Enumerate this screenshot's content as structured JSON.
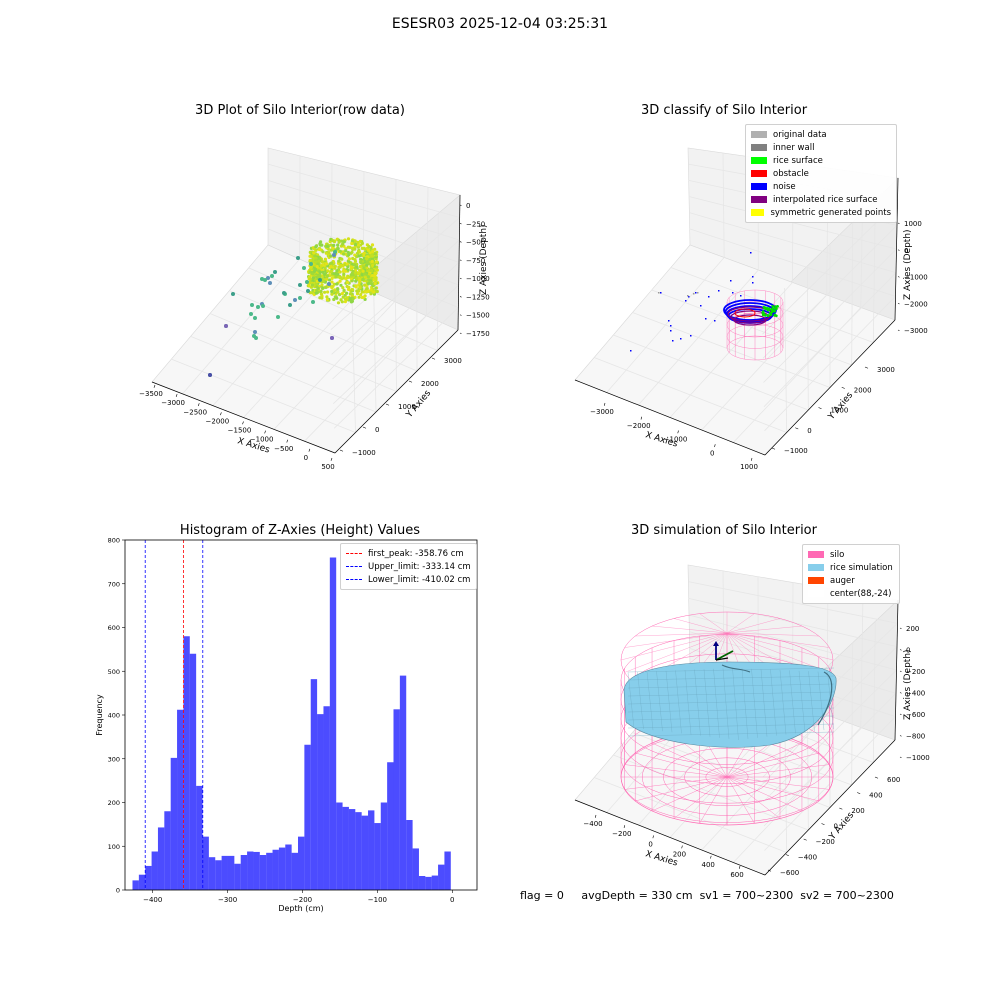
{
  "suptitle": "ESESR03 2025-12-04 03:25:31",
  "panels": {
    "raw": {
      "title": "3D Plot of Silo Interior(row data)",
      "x_label": "X Axies",
      "y_label": "Y Axies",
      "z_label": "Z Axies (Depth)",
      "x_ticks": [
        "−3500",
        "−3000",
        "−2500",
        "−2000",
        "−1500",
        "−1000",
        "−500",
        "0",
        "500"
      ],
      "y_ticks": [
        "−1000",
        "0",
        "1000",
        "2000",
        "3000"
      ],
      "z_ticks": [
        "0",
        "−250",
        "−500",
        "−750",
        "−1000",
        "−1250",
        "−1500",
        "−1750"
      ]
    },
    "classify": {
      "title": "3D classify of Silo Interior",
      "x_label": "X Axies",
      "y_label": "Y Axies",
      "z_label": "Z Axies (Depth)",
      "x_ticks": [
        "−3000",
        "−2000",
        "−1000",
        "0",
        "1000"
      ],
      "y_ticks": [
        "−1000",
        "0",
        "1000",
        "2000",
        "3000"
      ],
      "z_ticks": [
        "1000",
        "0",
        "−1000",
        "−2000",
        "−3000"
      ],
      "legend": [
        {
          "label": "original data",
          "color": "#b0b0b0"
        },
        {
          "label": "inner wall",
          "color": "#808080"
        },
        {
          "label": "rice surface",
          "color": "#00ff00"
        },
        {
          "label": "obstacle",
          "color": "#ff0000"
        },
        {
          "label": "noise",
          "color": "#0000ff"
        },
        {
          "label": "interpolated rice surface",
          "color": "#800080"
        },
        {
          "label": "symmetric generated points",
          "color": "#ffff00"
        }
      ]
    },
    "histogram": {
      "title": "Histogram of Z-Axies (Height) Values",
      "legend": [
        {
          "label": "first_peak: -358.76 cm",
          "color": "#ff0000"
        },
        {
          "label": "Upper_limit: -333.14 cm",
          "color": "#0000ff"
        },
        {
          "label": "Lower_limit: -410.02 cm",
          "color": "#0000ff"
        }
      ]
    },
    "simulation": {
      "title": "3D simulation of Silo Interior",
      "x_label": "X Axies",
      "y_label": "Y Axies",
      "z_label": "Z Axies (Depth)",
      "x_ticks": [
        "−400",
        "−200",
        "0",
        "200",
        "400",
        "600"
      ],
      "y_ticks": [
        "−600",
        "−400",
        "−200",
        "0",
        "200",
        "400",
        "600"
      ],
      "z_ticks": [
        "200",
        "0",
        "−200",
        "−400",
        "−600",
        "−800",
        "−1000"
      ],
      "legend": [
        {
          "label": "silo",
          "color": "#ff69b4"
        },
        {
          "label": "rice simulation",
          "color": "#87ceeb"
        },
        {
          "label": "auger",
          "color": "#ff4500"
        },
        {
          "label": "center(88,-24)",
          "color": "#ffffff"
        }
      ],
      "footer": {
        "flag": "flag = 0",
        "avg": "avgDepth = 330 cm",
        "sv1": "sv1 = 700~2300",
        "sv2": "sv2 = 700~2300"
      }
    }
  },
  "chart_data": {
    "type": "bar",
    "title": "Histogram of Z-Axies (Height) Values",
    "xlabel": "Depth (cm)",
    "ylabel": "Frequency",
    "xlim": [
      -437,
      33
    ],
    "ylim": [
      0,
      800
    ],
    "x_ticks": [
      -400,
      -300,
      -200,
      -100,
      0
    ],
    "y_ticks": [
      0,
      100,
      200,
      300,
      400,
      500,
      600,
      700,
      800
    ],
    "bin_start": -427,
    "bin_width": 8.5,
    "values": [
      22,
      35,
      55,
      88,
      143,
      180,
      302,
      412,
      580,
      540,
      238,
      122,
      75,
      68,
      78,
      78,
      60,
      80,
      88,
      87,
      80,
      85,
      92,
      97,
      104,
      85,
      122,
      332,
      482,
      402,
      420,
      760,
      200,
      190,
      185,
      178,
      170,
      182,
      153,
      200,
      292,
      413,
      490,
      160,
      95,
      32,
      30,
      33,
      58,
      88
    ],
    "bar_color": "#0000ff",
    "vlines": [
      {
        "x": -358.76,
        "color": "#ff0000",
        "label": "first_peak: -358.76 cm"
      },
      {
        "x": -333.14,
        "color": "#0000ff",
        "label": "Upper_limit: -333.14 cm"
      },
      {
        "x": -410.02,
        "color": "#0000ff",
        "label": "Lower_limit: -410.02 cm"
      }
    ],
    "legend_position": "upper right"
  }
}
